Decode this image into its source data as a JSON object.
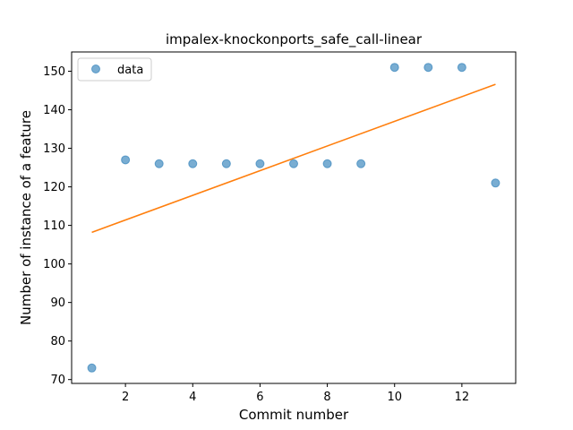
{
  "chart_data": {
    "type": "scatter",
    "title": "impalex-knockonports_safe_call-linear",
    "xlabel": "Commit number",
    "ylabel": "Number of instance of a feature",
    "xlim": [
      0.4,
      13.6
    ],
    "ylim": [
      69,
      155
    ],
    "xticks": [
      2,
      4,
      6,
      8,
      10,
      12
    ],
    "yticks": [
      70,
      80,
      90,
      100,
      110,
      120,
      130,
      140,
      150
    ],
    "grid": false,
    "legend_position": "top-left",
    "series": [
      {
        "name": "data",
        "kind": "scatter",
        "color": "#1f77b4",
        "x": [
          1,
          2,
          3,
          4,
          5,
          6,
          7,
          8,
          9,
          10,
          11,
          12,
          13
        ],
        "y": [
          73,
          127,
          126,
          126,
          126,
          126,
          126,
          126,
          126,
          151,
          151,
          151,
          121
        ]
      },
      {
        "kind": "line",
        "color": "#ff7f0e",
        "x": [
          1,
          13
        ],
        "y": [
          108.2,
          146.6
        ]
      }
    ]
  }
}
